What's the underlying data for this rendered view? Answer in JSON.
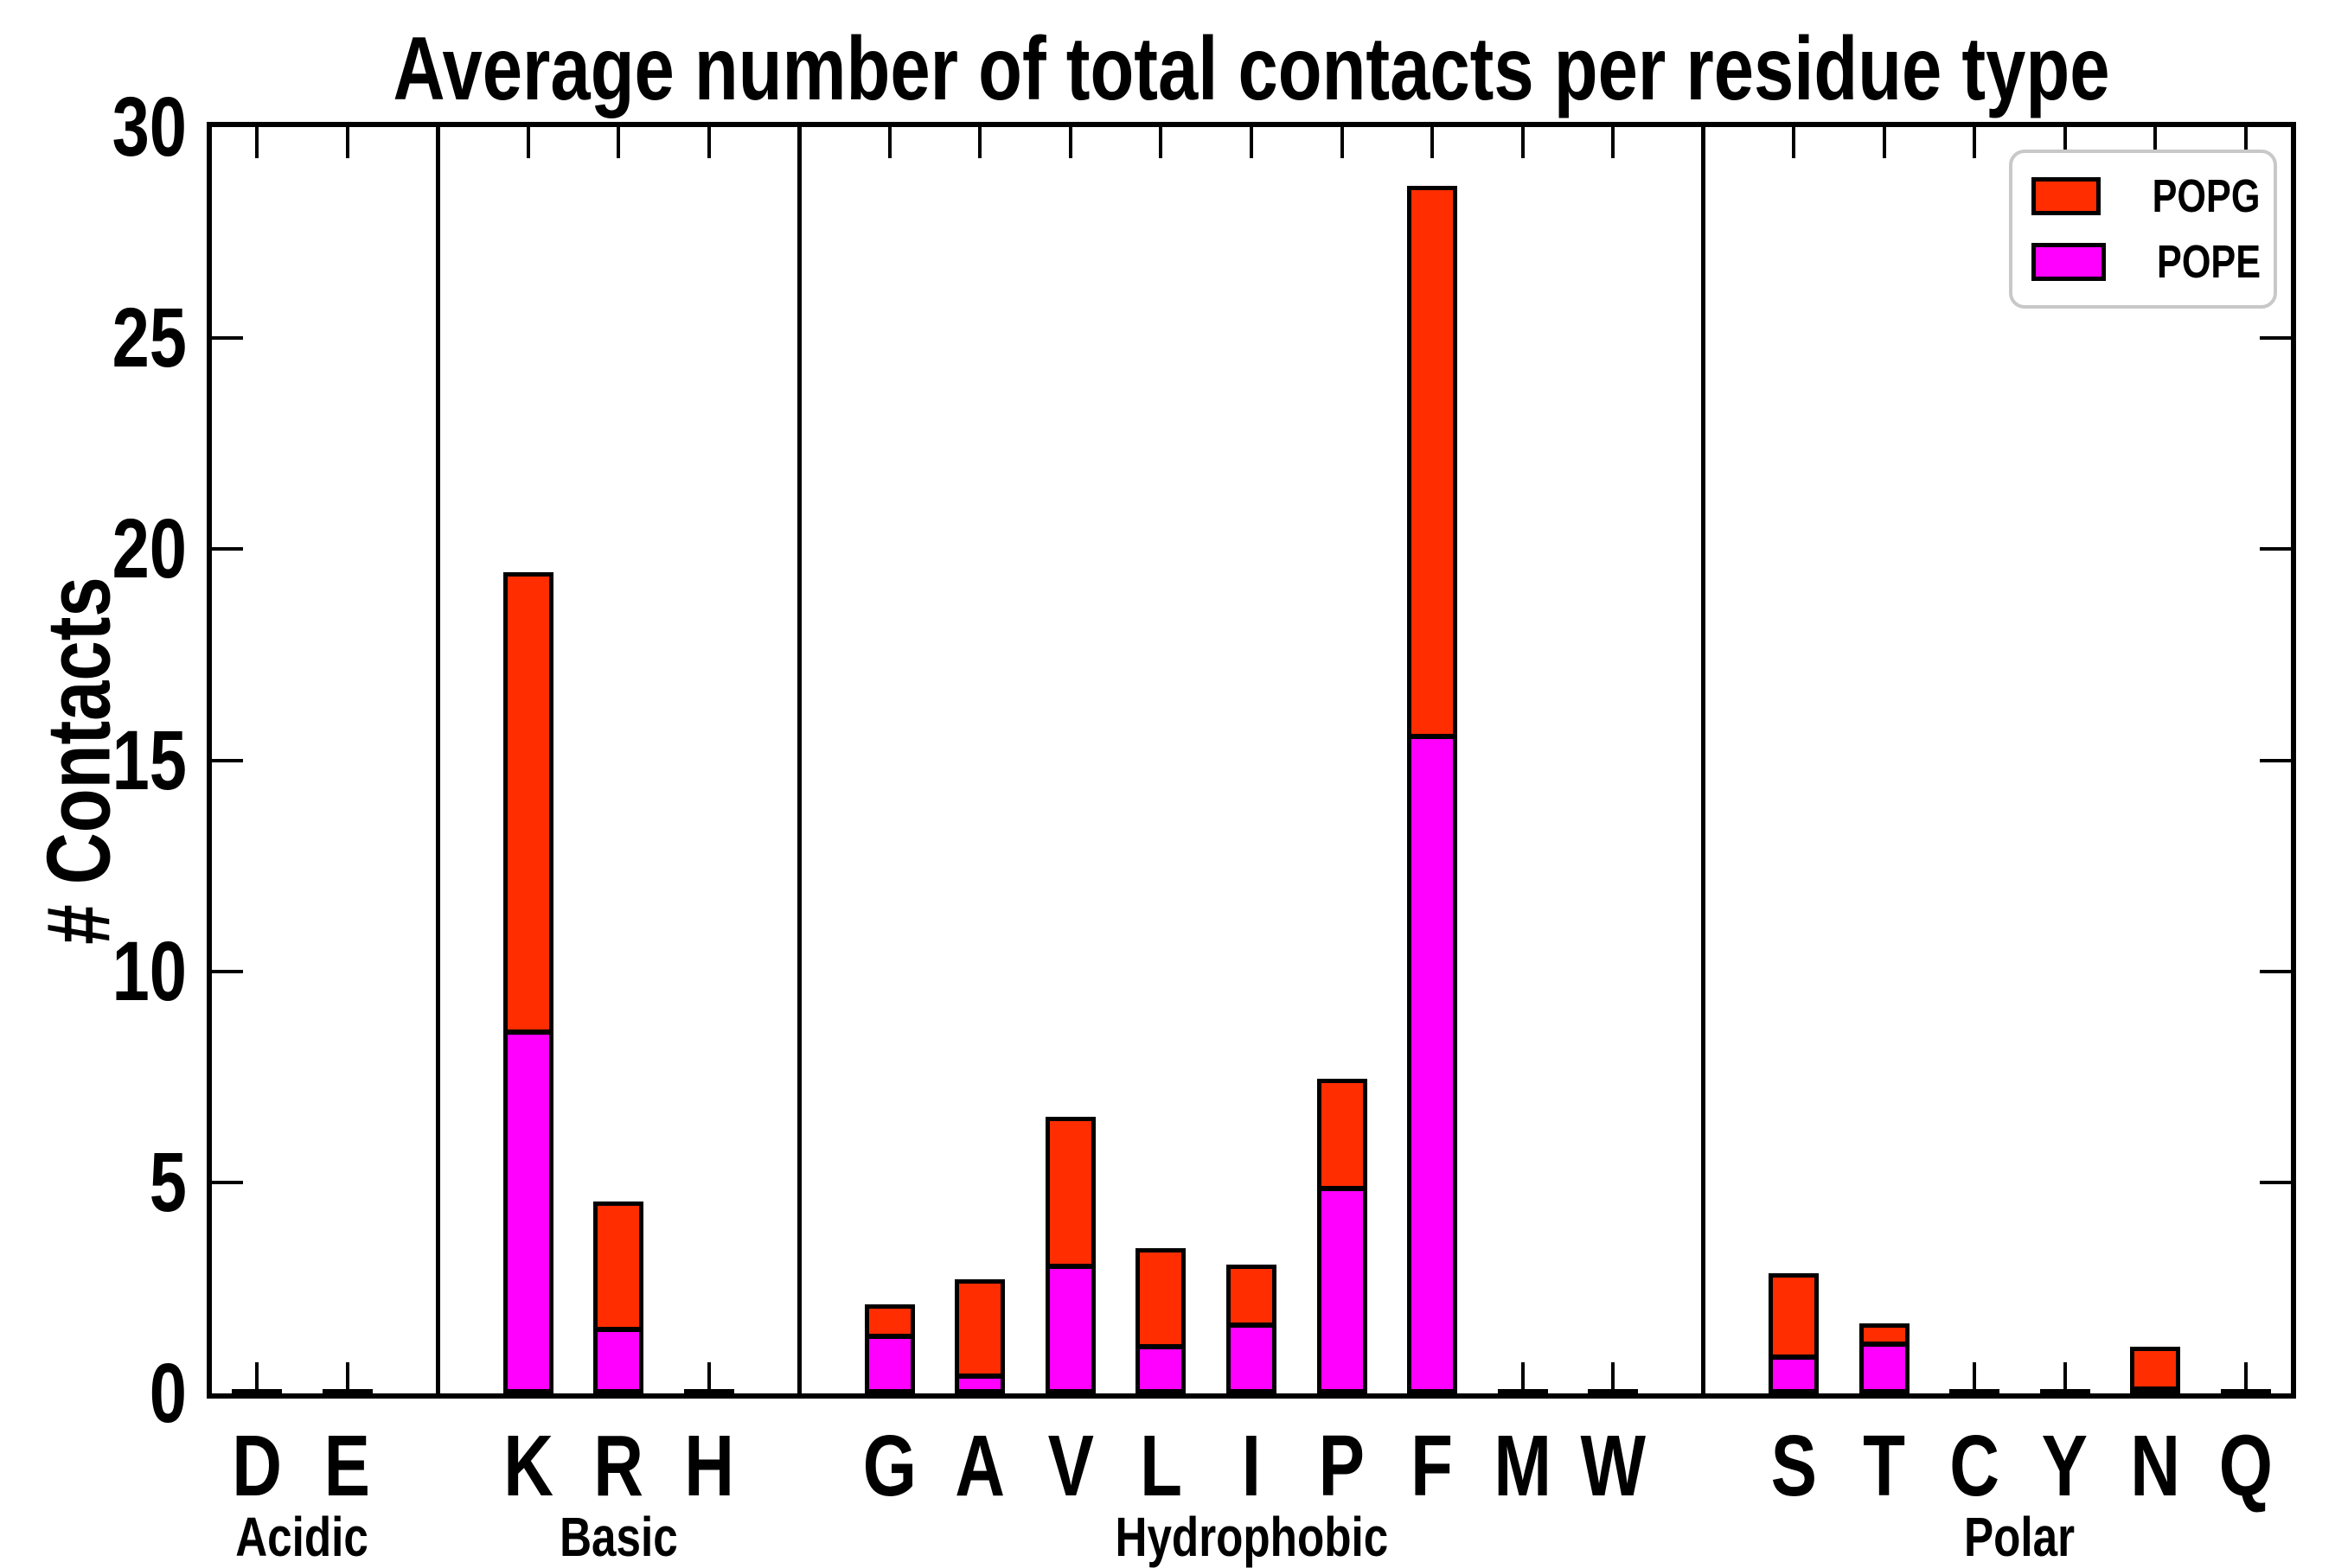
{
  "chart_data": {
    "type": "bar",
    "stacked": true,
    "title": "Average number of total contacts per residue type",
    "ylabel": "# Contacts",
    "xlabel": "",
    "ylim": [
      0,
      30
    ],
    "yticks": [
      0,
      5,
      10,
      15,
      20,
      25,
      30
    ],
    "grid": false,
    "legend_position": "upper right",
    "groups": [
      {
        "label": "Acidic",
        "categories": [
          "D",
          "E"
        ]
      },
      {
        "label": "Basic",
        "categories": [
          "K",
          "R",
          "H"
        ]
      },
      {
        "label": "Hydrophobic",
        "categories": [
          "G",
          "A",
          "V",
          "L",
          "I",
          "P",
          "F",
          "M",
          "W"
        ]
      },
      {
        "label": "Polar",
        "categories": [
          "S",
          "T",
          "C",
          "Y",
          "N",
          "Q"
        ]
      }
    ],
    "categories": [
      "D",
      "E",
      "K",
      "R",
      "H",
      "G",
      "A",
      "V",
      "L",
      "I",
      "P",
      "F",
      "M",
      "W",
      "S",
      "T",
      "C",
      "Y",
      "N",
      "Q"
    ],
    "series": [
      {
        "name": "POPE",
        "color": "#FF00FF",
        "values": [
          0.03,
          0.03,
          8.6,
          1.55,
          0.05,
          1.4,
          0.45,
          3.05,
          1.15,
          1.65,
          4.9,
          15.6,
          0.05,
          0.05,
          0.9,
          1.2,
          0.03,
          0.04,
          0.15,
          0.03
        ]
      },
      {
        "name": "POPG",
        "color": "#FF2D00",
        "values": [
          0.02,
          0.02,
          10.85,
          3.0,
          0.05,
          0.7,
          2.25,
          3.5,
          2.3,
          1.4,
          2.55,
          13.0,
          0.05,
          0.05,
          1.95,
          0.45,
          0.02,
          0.04,
          0.95,
          0.02
        ]
      }
    ],
    "totals": [
      0.05,
      0.05,
      19.45,
      4.55,
      0.1,
      2.1,
      2.7,
      6.55,
      3.45,
      3.05,
      7.45,
      28.6,
      0.1,
      0.1,
      2.85,
      1.65,
      0.05,
      0.08,
      1.1,
      0.05
    ]
  },
  "legend": {
    "items": [
      {
        "label": "POPG",
        "color": "#FF2D00"
      },
      {
        "label": "POPE",
        "color": "#FF00FF"
      }
    ]
  },
  "colors": {
    "pope": "#FF00FF",
    "popg": "#FF2D00",
    "outline": "#000000",
    "legend_border": "#C8C8C8",
    "background": "#FFFFFF"
  }
}
